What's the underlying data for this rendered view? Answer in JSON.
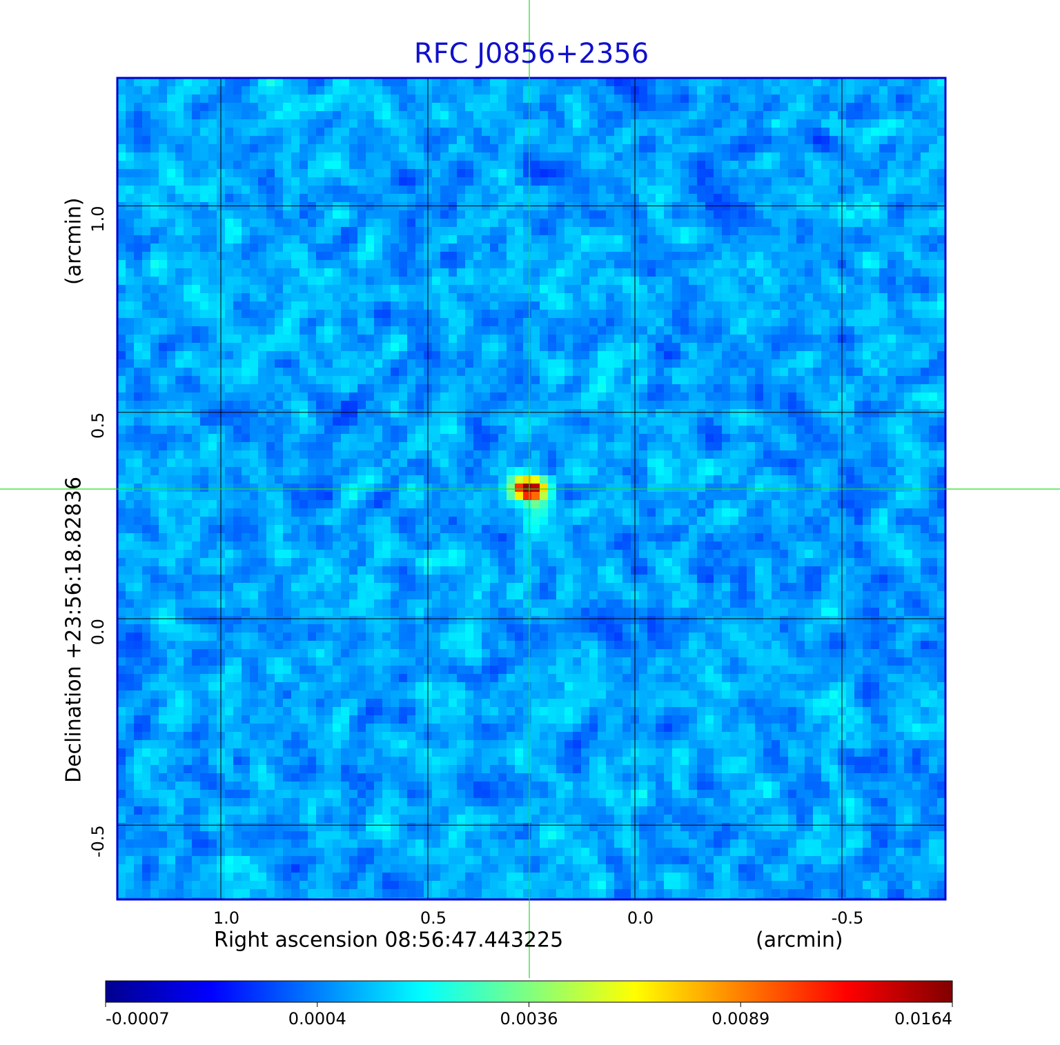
{
  "chart_data": {
    "type": "image",
    "title": "RFC J0856+2356",
    "x_label": "Right ascension  08:56:47.443225",
    "x_unit": "(arcmin)",
    "y_label": "Declination  +23:56:18.82836",
    "y_unit": "(arcmin)",
    "xlim": [
      1.25,
      -0.75
    ],
    "ylim": [
      -0.68,
      1.31
    ],
    "xticks": [
      {
        "value": 1,
        "label": "1.0"
      },
      0.5,
      {
        "value": 0,
        "label": "0.0"
      },
      -0.5
    ],
    "yticks": [
      -0.5,
      {
        "value": 0,
        "label": "0.0"
      },
      0.5,
      {
        "value": 1,
        "label": "1.0"
      }
    ],
    "grid": true,
    "colorbar_ticks": [
      -0.0007,
      0.0004,
      0.0036,
      0.0089,
      0.0164
    ]
  }
}
